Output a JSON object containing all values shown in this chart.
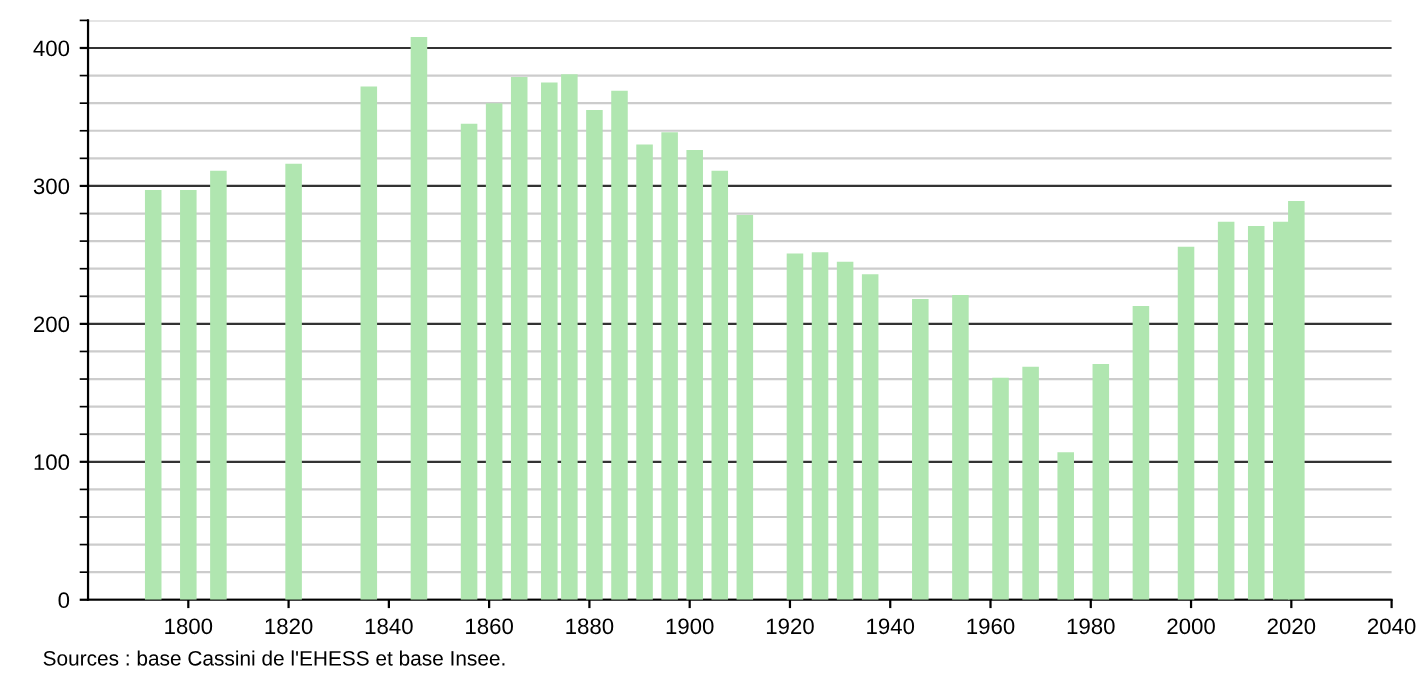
{
  "chart_data": {
    "type": "bar",
    "x": [
      1793,
      1800,
      1806,
      1821,
      1836,
      1846,
      1856,
      1861,
      1866,
      1872,
      1876,
      1881,
      1886,
      1891,
      1896,
      1901,
      1906,
      1911,
      1921,
      1926,
      1931,
      1936,
      1946,
      1954,
      1962,
      1968,
      1975,
      1982,
      1990,
      1999,
      2007,
      2013,
      2018,
      2021
    ],
    "values": [
      297,
      297,
      311,
      316,
      372,
      408,
      345,
      360,
      379,
      375,
      381,
      355,
      369,
      330,
      339,
      326,
      311,
      279,
      251,
      252,
      245,
      236,
      218,
      221,
      161,
      169,
      107,
      171,
      213,
      256,
      274,
      271,
      274,
      289
    ],
    "color": "#b0e6b0",
    "xlim": [
      1780,
      2040
    ],
    "xticks": [
      1800,
      1820,
      1840,
      1860,
      1880,
      1900,
      1920,
      1940,
      1960,
      1980,
      2000,
      2020,
      2040
    ],
    "ylim": [
      0,
      420
    ],
    "yticks": [
      0,
      100,
      200,
      300,
      400
    ],
    "grid": true,
    "annotations": [
      "Sources : base Cassini de l'EHESS et base Insee."
    ]
  }
}
